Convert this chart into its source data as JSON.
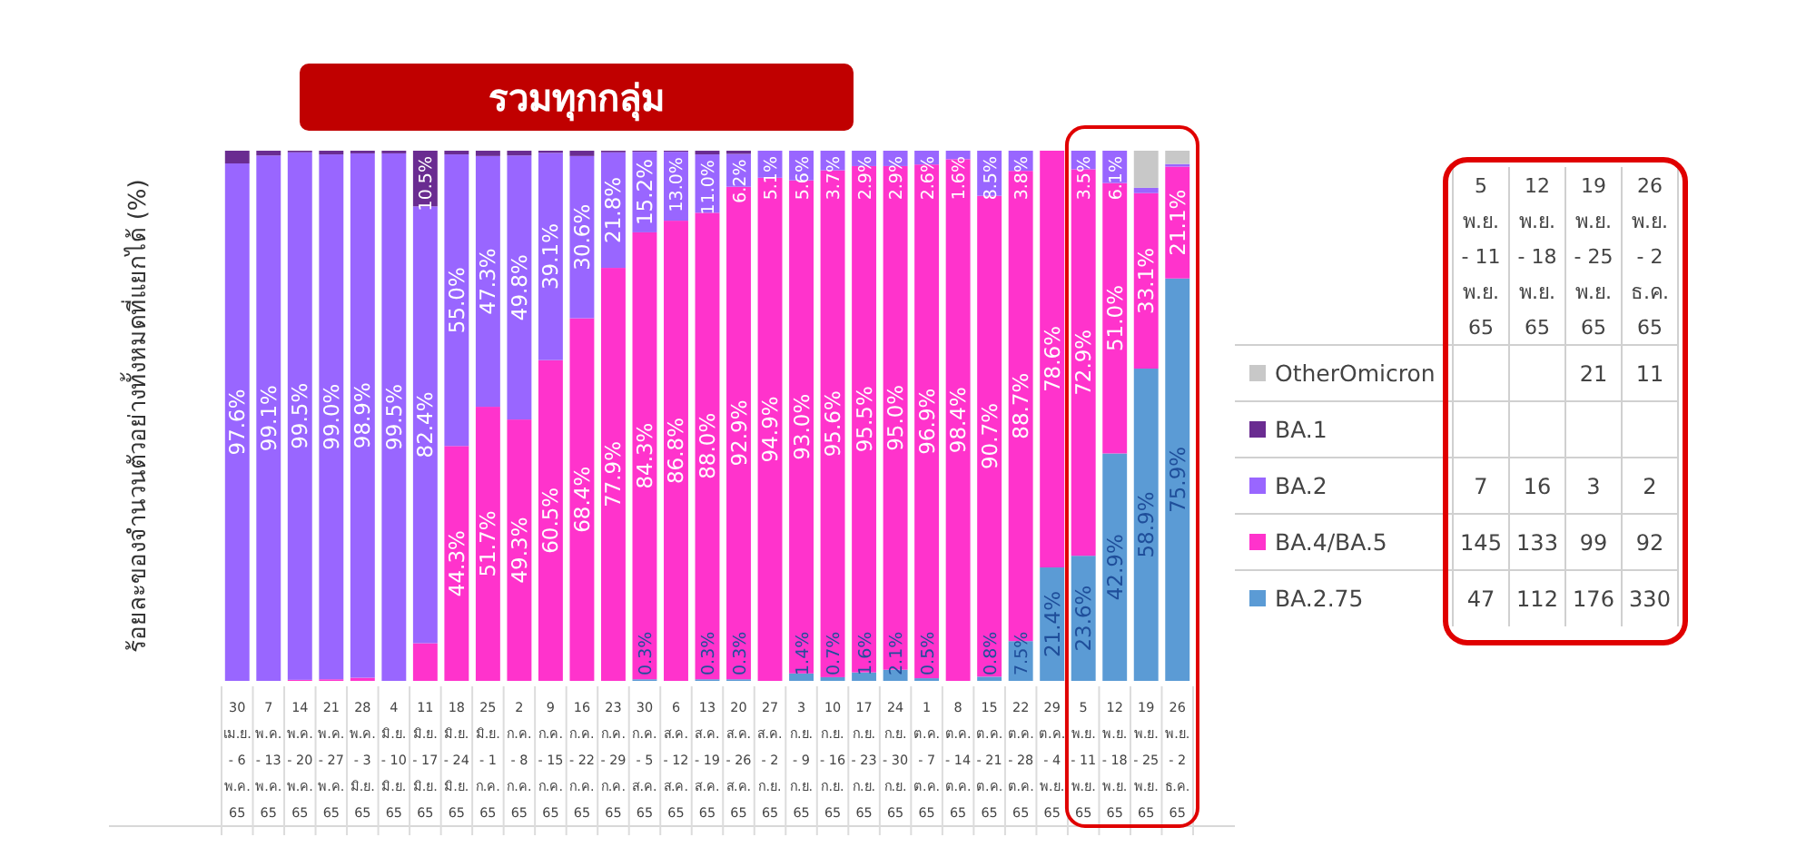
{
  "chart_data": [
    {
      "type": "bar",
      "stacked": true,
      "title": "รวมทุกกลุ่ม",
      "ylabel": "ร้อยละของจำนวนตัวอย่างทั้งหมดที่แยกได้ (%)",
      "ylim": [
        0,
        100
      ],
      "tick_labels": "x",
      "categories": [
        "30 เม.ย. - 6 พ.ค. 65",
        "7 พ.ค. - 13 พ.ค. 65",
        "14 พ.ค. - 20 พ.ค. 65",
        "21 พ.ค. - 27 พ.ค. 65",
        "28 พ.ค. - 3 มิ.ย. 65",
        "4 มิ.ย. - 10 มิ.ย. 65",
        "11 มิ.ย. - 17 มิ.ย. 65",
        "18 มิ.ย. - 24 มิ.ย. 65",
        "25 มิ.ย. - 1 ก.ค. 65",
        "2 ก.ค. - 8 ก.ค. 65",
        "9 ก.ค. - 15 ก.ค. 65",
        "16 ก.ค. - 22 ก.ค. 65",
        "23 ก.ค. - 29 ก.ค. 65",
        "30 ก.ค. - 5 ส.ค. 65",
        "6 ส.ค. - 12 ส.ค. 65",
        "13 ส.ค. - 19 ส.ค. 65",
        "20 ส.ค. - 26 ส.ค. 65",
        "27 ส.ค. - 2 ก.ย. 65",
        "3 ก.ย. - 9 ก.ย. 65",
        "10 ก.ย. - 16 ก.ย. 65",
        "17 ก.ย. - 23 ก.ย. 65",
        "24 ก.ย. - 30 ก.ย. 65",
        "1 ต.ค. - 7 ต.ค. 65",
        "8 ต.ค. - 14 ต.ค. 65",
        "15 ต.ค. - 21 ต.ค. 65",
        "22 ต.ค. - 28 ต.ค. 65",
        "29 ต.ค. - 4 พ.ย. 65",
        "5 พ.ย. - 11 พ.ย. 65",
        "12 พ.ย. - 18 พ.ย. 65",
        "19 พ.ย. - 25 พ.ย. 65",
        "26 พ.ย. - 2 ธ.ค. 65"
      ],
      "series": [
        {
          "color": "#5b9bd5",
          "values": [
            0,
            0,
            0,
            0,
            0,
            0,
            0,
            0,
            0,
            0,
            0,
            0,
            0,
            0.3,
            0,
            0.3,
            0.3,
            0,
            1.4,
            0.7,
            1.6,
            2.1,
            0.5,
            0,
            0.8,
            7.5,
            21.4,
            23.6,
            42.9,
            58.9,
            75.9
          ],
          "value_labels": [
            null,
            null,
            null,
            null,
            null,
            null,
            null,
            null,
            null,
            null,
            null,
            null,
            null,
            "0.3%",
            null,
            "0.3%",
            "0.3%",
            null,
            "1.4%",
            "0.7%",
            "1.6%",
            "2.1%",
            "0.5%",
            null,
            "0.8%",
            "7.5%",
            "21.4%",
            "23.6%",
            "42.9%",
            "58.9%",
            "75.9%"
          ]
        },
        {
          "color": "#ff33cc",
          "values": [
            0,
            0,
            0.2,
            0.3,
            0.6,
            0,
            7.1,
            44.3,
            51.7,
            49.3,
            60.5,
            68.4,
            77.9,
            84.3,
            86.8,
            88.0,
            92.9,
            94.9,
            93.0,
            95.6,
            95.5,
            95.0,
            96.9,
            98.4,
            90.7,
            88.7,
            78.6,
            72.9,
            51.0,
            33.1,
            21.1
          ],
          "value_labels": [
            null,
            null,
            null,
            null,
            null,
            null,
            null,
            "44.3%",
            "51.7%",
            "49.3%",
            "60.5%",
            "68.4%",
            "77.9%",
            "84.3%",
            "86.8%",
            "88.0%",
            "92.9%",
            "94.9%",
            "93.0%",
            "95.6%",
            "95.5%",
            "95.0%",
            "96.9%",
            "98.4%",
            "90.7%",
            "88.7%",
            "78.6%",
            "72.9%",
            "51.0%",
            "33.1%",
            "21.1%"
          ]
        },
        {
          "color": "#9966ff",
          "values": [
            97.6,
            99.1,
            99.5,
            99.0,
            98.9,
            99.5,
            82.4,
            55.0,
            47.3,
            49.8,
            39.1,
            30.6,
            21.8,
            15.2,
            13.0,
            11.0,
            6.2,
            5.1,
            5.6,
            3.7,
            2.9,
            2.9,
            2.6,
            1.6,
            8.5,
            3.8,
            0,
            3.5,
            6.1,
            1.0,
            0.5
          ],
          "value_labels": [
            "97.6%",
            "99.1%",
            "99.5%",
            "99.0%",
            "98.9%",
            "99.5%",
            "82.4%",
            "55.0%",
            "47.3%",
            "49.8%",
            "39.1%",
            "30.6%",
            "21.8%",
            "15.2%",
            "13.0%",
            "11.0%",
            "6.2%",
            "5.1%",
            "5.6%",
            "3.7%",
            "2.9%",
            "2.9%",
            "2.6%",
            "1.6%",
            "8.5%",
            "3.8%",
            null,
            "3.5%",
            "6.1%",
            null,
            null
          ]
        },
        {
          "color": "#6a2c91",
          "values": [
            2.4,
            0.9,
            0.3,
            0.7,
            0.5,
            0.5,
            10.5,
            0.7,
            1.0,
            0.9,
            0.4,
            1.0,
            0.3,
            0.2,
            0.2,
            0.7,
            0.6,
            0,
            0,
            0,
            0,
            0,
            0,
            0,
            0,
            0,
            0,
            0,
            0,
            0,
            0
          ],
          "value_labels": [
            null,
            null,
            null,
            null,
            null,
            null,
            "10.5%",
            null,
            null,
            null,
            null,
            null,
            null,
            null,
            null,
            null,
            null,
            null,
            null,
            null,
            null,
            null,
            null,
            null,
            null,
            null,
            null,
            null,
            null,
            null,
            null
          ]
        },
        {
          "color": "#c8c8c8",
          "values": [
            0,
            0,
            0,
            0,
            0,
            0,
            0,
            0,
            0,
            0,
            0,
            0,
            0,
            0,
            0,
            0,
            0,
            0,
            0,
            0,
            0,
            0,
            0,
            0,
            0,
            0,
            0,
            0,
            0,
            7.0,
            2.5
          ]
        }
      ]
    },
    {
      "type": "heatmap",
      "data_labels": true,
      "y_categories": [
        "OtherOmicron",
        "BA.1",
        "BA.2",
        "BA.4/BA.5",
        "BA.2.75"
      ],
      "categories": [
        "5 พ.ย. - 11 พ.ย. 65",
        "12 พ.ย. - 18 พ.ย. 65",
        "19 พ.ย. - 25 พ.ย. 65",
        "26 พ.ย. - 2 ธ.ค. 65"
      ],
      "cells": [
        [
          null,
          null,
          21,
          11
        ],
        [
          null,
          null,
          null,
          null
        ],
        [
          7,
          16,
          3,
          2
        ],
        [
          145,
          133,
          99,
          92
        ],
        [
          47,
          112,
          176,
          330
        ]
      ]
    }
  ]
}
